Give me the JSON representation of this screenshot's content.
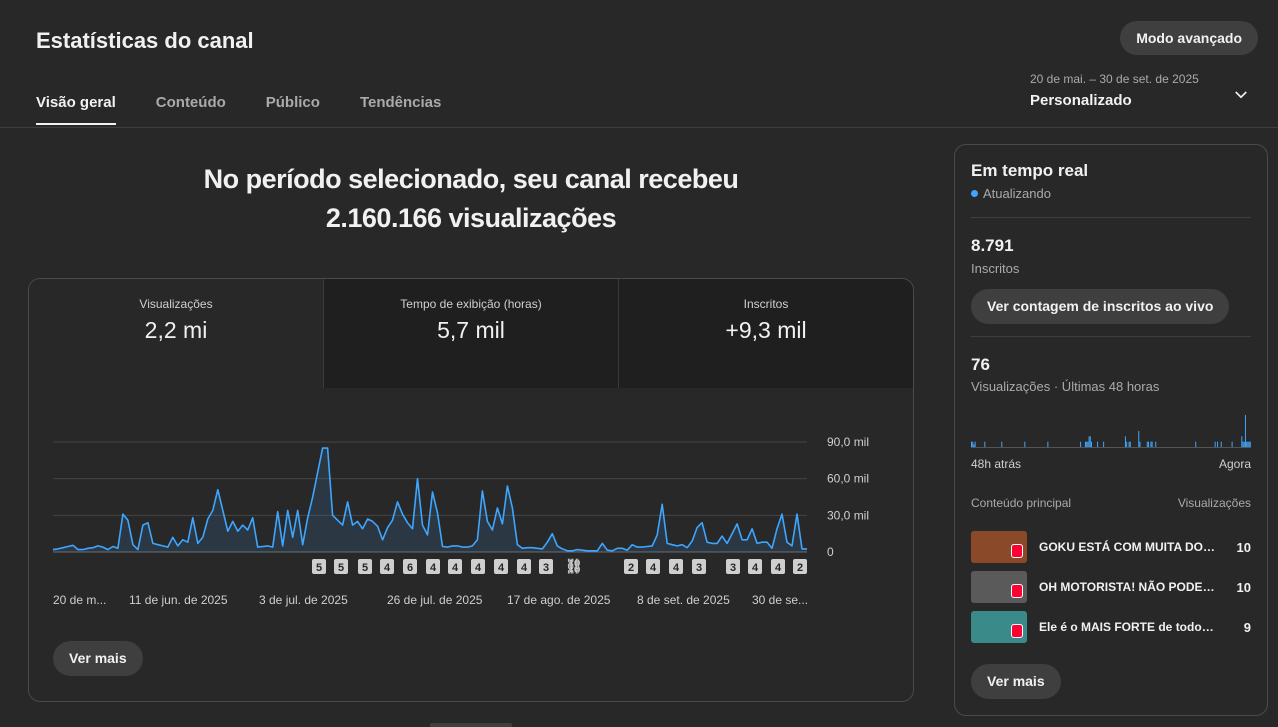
{
  "header": {
    "title": "Estatísticas do canal",
    "advanced_label": "Modo avançado",
    "tabs": [
      {
        "label": "Visão geral",
        "active": true
      },
      {
        "label": "Conteúdo",
        "active": false
      },
      {
        "label": "Público",
        "active": false
      },
      {
        "label": "Tendências",
        "active": false
      }
    ],
    "date_range": {
      "dates": "20 de mai. – 30 de set. de 2025",
      "label": "Personalizado",
      "icon": "chevron-down-icon"
    }
  },
  "summary": {
    "line1": "No período selecionado, seu canal recebeu",
    "line2": "2.160.166 visualizações"
  },
  "metrics": [
    {
      "label": "Visualizações",
      "value": "2,2 mi"
    },
    {
      "label": "Tempo de exibição (horas)",
      "value": "5,7 mil"
    },
    {
      "label": "Inscritos",
      "value": "+9,3 mil"
    }
  ],
  "chart_data": {
    "type": "area",
    "series_color": "#3ea6ff",
    "yticks": [
      "90,0 mil",
      "60,0 mil",
      "30,0 mil",
      "0"
    ],
    "ylim": [
      0,
      90000
    ],
    "xtick_labels": [
      "20 de m...",
      "11 de jun. de 2025",
      "3 de jul. de 2025",
      "26 de jul. de 2025",
      "17 de ago. de 2025",
      "8 de set. de 2025",
      "30 de se..."
    ],
    "values": [
      2000,
      2500,
      3500,
      4500,
      5500,
      2000,
      2000,
      3000,
      3500,
      5000,
      4000,
      2000,
      4500,
      3000,
      31000,
      26000,
      6000,
      2000,
      22000,
      24000,
      7000,
      6000,
      5000,
      4000,
      12000,
      5000,
      10000,
      8000,
      28000,
      7000,
      12000,
      27000,
      34000,
      51000,
      34000,
      17000,
      25000,
      17000,
      22000,
      18000,
      28000,
      4000,
      4500,
      5000,
      4000,
      33000,
      5000,
      34000,
      12000,
      34000,
      6000,
      28000,
      45000,
      65000,
      85000,
      85000,
      30000,
      26000,
      22000,
      41000,
      22000,
      25000,
      19000,
      27000,
      25000,
      21000,
      10000,
      20000,
      26000,
      41000,
      31000,
      24000,
      19000,
      60000,
      22000,
      14000,
      49000,
      32000,
      4500,
      4000,
      5000,
      5000,
      4000,
      4000,
      5000,
      10000,
      50000,
      25000,
      18000,
      36000,
      23000,
      54000,
      36000,
      6000,
      3000,
      3500,
      3500,
      3000,
      2500,
      8000,
      15000,
      5000,
      2500,
      1000,
      1000,
      2000,
      1500,
      1000,
      1000,
      1000,
      7000,
      1500,
      1000,
      3000,
      3000,
      1500,
      6000,
      4000,
      4000,
      4500,
      5000,
      14000,
      39000,
      7000,
      6000,
      5000,
      6000,
      3500,
      9000,
      20000,
      24000,
      8000,
      7000,
      7000,
      13000,
      7000,
      15000,
      23000,
      10000,
      10000,
      19000,
      7000,
      8000,
      8000,
      3000,
      19000,
      31000,
      8000,
      5000,
      31000,
      2500,
      2500
    ],
    "markers": [
      "5",
      "5",
      "5",
      "4",
      "6",
      "4",
      "4",
      "4",
      "4",
      "4",
      "3",
      "link",
      "2",
      "4",
      "4",
      "3",
      "3",
      "4",
      "4",
      "2"
    ]
  },
  "realtime": {
    "title": "Em tempo real",
    "status": "Atualizando",
    "subscribers": "8.791",
    "subscribers_label": "Inscritos",
    "live_button": "Ver contagem de inscritos ao vivo",
    "views": "76",
    "views_label": "Visualizações · Últimas 48 horas",
    "mini_chart_values": [
      1,
      1,
      0.5,
      1,
      0,
      0,
      0,
      0,
      0,
      0,
      0,
      1,
      0,
      0,
      0,
      0,
      0,
      0,
      0,
      0,
      0,
      0,
      0,
      0,
      0,
      1,
      0,
      0,
      0,
      0,
      0,
      0,
      0,
      0,
      0,
      0,
      0,
      0,
      0,
      0,
      0,
      0,
      0,
      0,
      1,
      0,
      0,
      0,
      0,
      0,
      0,
      0,
      0,
      0,
      0,
      0,
      0,
      0,
      0,
      0,
      0,
      0,
      0,
      1,
      0,
      0,
      0,
      0,
      0,
      0,
      0,
      0,
      0,
      0,
      0,
      0,
      0,
      0,
      0,
      0,
      0,
      0,
      0,
      0,
      0,
      0,
      0,
      0,
      0,
      0,
      1,
      0,
      0,
      0,
      1,
      1,
      1,
      2,
      2,
      1,
      0,
      0,
      0,
      0,
      1,
      0,
      0,
      0,
      0,
      1,
      0,
      0,
      0,
      0,
      0,
      0,
      0,
      0,
      0,
      0,
      0,
      0,
      0,
      0,
      0,
      0,
      0,
      2,
      1,
      0,
      1,
      1,
      0,
      0,
      0,
      0,
      0,
      0,
      3,
      1,
      0,
      0,
      0,
      0,
      0,
      1,
      1,
      0,
      1,
      1,
      0,
      0,
      1,
      0,
      0,
      0,
      0,
      0,
      0,
      0,
      0,
      0,
      0,
      0,
      0,
      0,
      0,
      0,
      0,
      0,
      0,
      0,
      0,
      0,
      0,
      0,
      0,
      0,
      0,
      0,
      0,
      0,
      0,
      0,
      0,
      1,
      0,
      0,
      0,
      0,
      0,
      0,
      0,
      0,
      0,
      0,
      0,
      0,
      0,
      0,
      0,
      1,
      0,
      1,
      0,
      0,
      1,
      0,
      0,
      0,
      0,
      0,
      0,
      0,
      0,
      1,
      0,
      0,
      0,
      0,
      0,
      0,
      0,
      2,
      1,
      1,
      6,
      1,
      1,
      1,
      1
    ],
    "mini_left": "48h atrás",
    "mini_right": "Agora",
    "top_content_header": "Conteúdo principal",
    "top_content_views_header": "Visualizações",
    "top_content": [
      {
        "title": "GOKU ESTÁ COM MUITA DOR!...",
        "views": "10",
        "color": "#8a4a2a"
      },
      {
        "title": "OH MOTORISTA! NÃO PODE FA...",
        "views": "10",
        "color": "#5a5a5a"
      },
      {
        "title": "Ele é o MAIS FORTE de todos!...",
        "views": "9",
        "color": "#3a8a8a"
      }
    ],
    "more_label": "Ver mais"
  },
  "card_more_label": "Ver mais"
}
